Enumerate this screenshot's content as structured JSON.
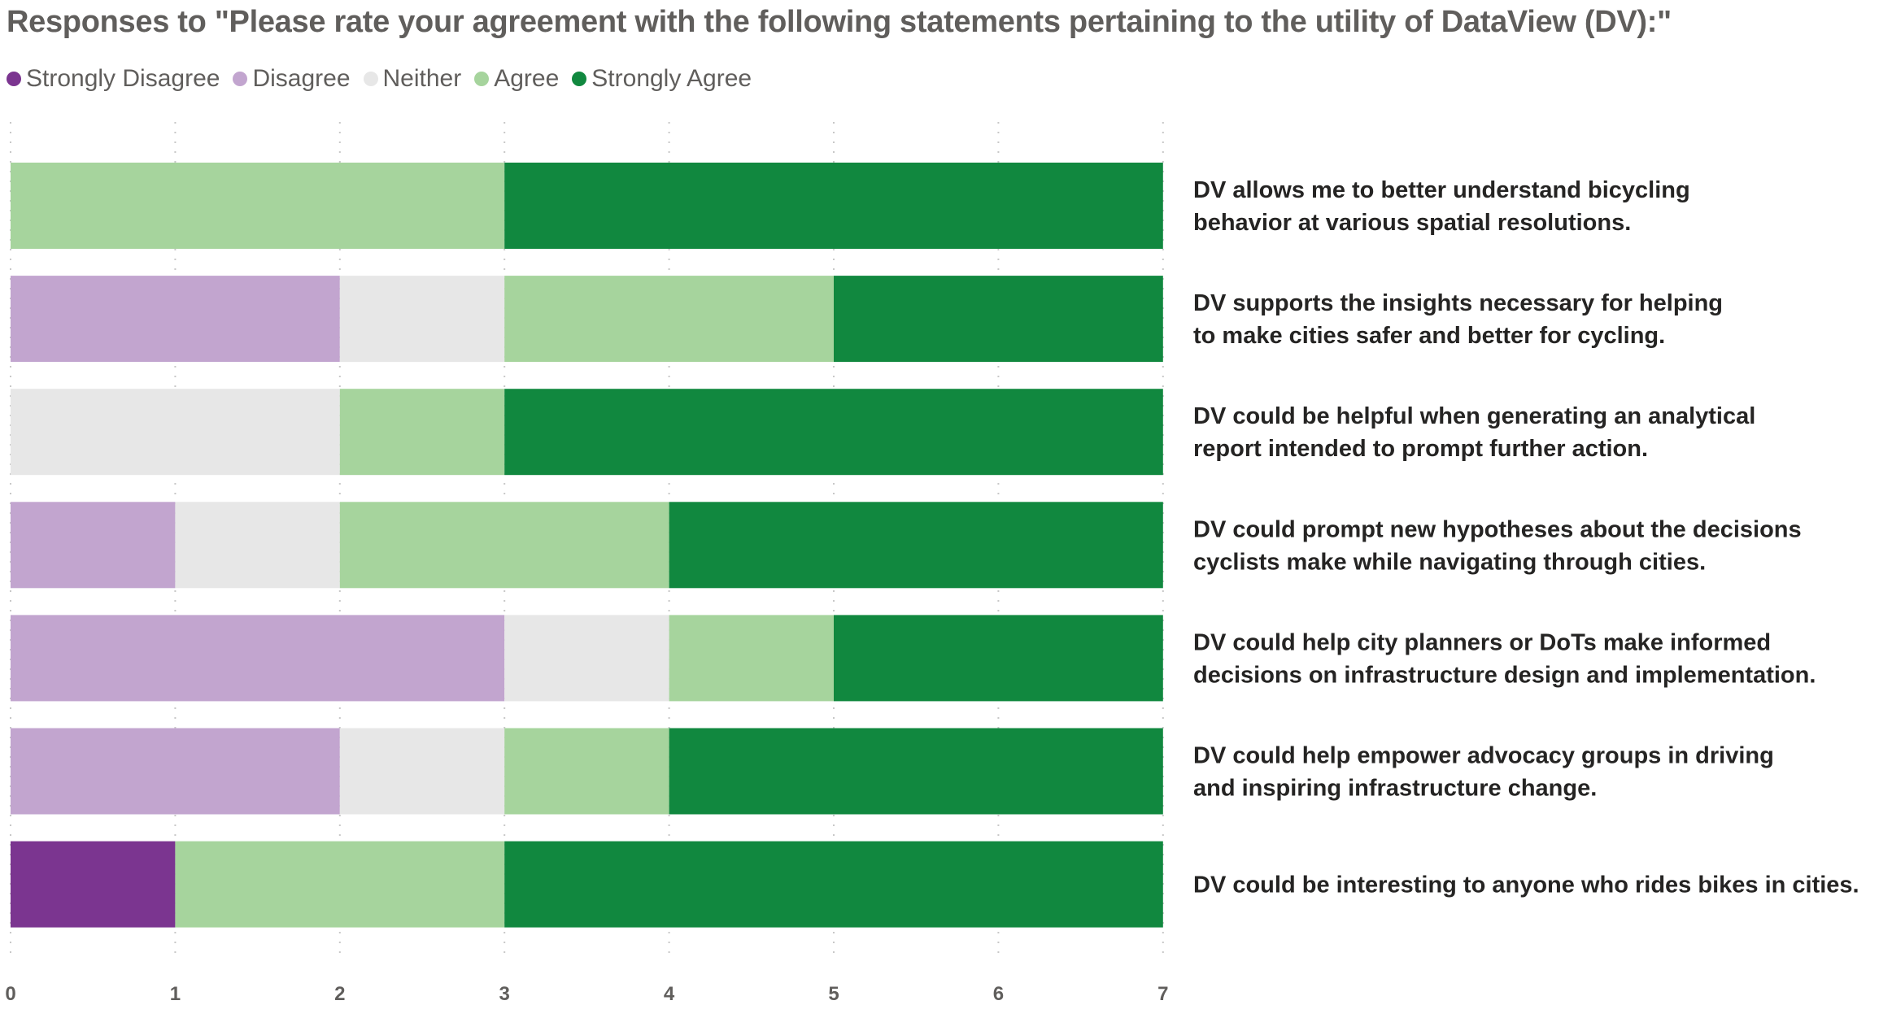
{
  "chart_data": {
    "type": "bar",
    "orientation": "horizontal",
    "stacked": true,
    "title": "Responses to \"Please rate your agreement with the following statements pertaining to the utility of DataView (DV):\"",
    "xlabel": "",
    "ylabel": "",
    "xlim": [
      0,
      7
    ],
    "xticks": [
      "0",
      "1",
      "2",
      "3",
      "4",
      "5",
      "6",
      "7"
    ],
    "grid": true,
    "legend_position": "top-left",
    "categories": [
      [
        "DV allows me to better understand bicycling",
        "behavior at various spatial resolutions."
      ],
      [
        "DV supports the insights necessary for helping",
        "to make cities safer and better for cycling."
      ],
      [
        "DV could be helpful when generating an analytical",
        "report intended to prompt further action."
      ],
      [
        "DV could prompt new hypotheses about the decisions",
        "cyclists make while navigating through cities."
      ],
      [
        "DV could help city planners or DoTs make informed",
        "decisions on infrastructure design and implementation."
      ],
      [
        "DV could help empower advocacy groups in driving",
        "and inspiring infrastructure change."
      ],
      [
        "DV could be interesting to anyone who rides bikes in cities."
      ]
    ],
    "series": [
      {
        "name": "Strongly Disagree",
        "color": "#7b3590",
        "values": [
          0,
          0,
          0,
          0,
          0,
          0,
          1
        ]
      },
      {
        "name": "Disagree",
        "color": "#c2a5cf",
        "values": [
          0,
          2,
          0,
          1,
          3,
          2,
          0
        ]
      },
      {
        "name": "Neither",
        "color": "#e7e7e7",
        "values": [
          0,
          1,
          2,
          1,
          1,
          1,
          0
        ]
      },
      {
        "name": "Agree",
        "color": "#a6d49d",
        "values": [
          3,
          2,
          1,
          2,
          1,
          1,
          2
        ]
      },
      {
        "name": "Strongly Agree",
        "color": "#11883f",
        "values": [
          4,
          2,
          4,
          3,
          2,
          3,
          4
        ]
      }
    ]
  }
}
